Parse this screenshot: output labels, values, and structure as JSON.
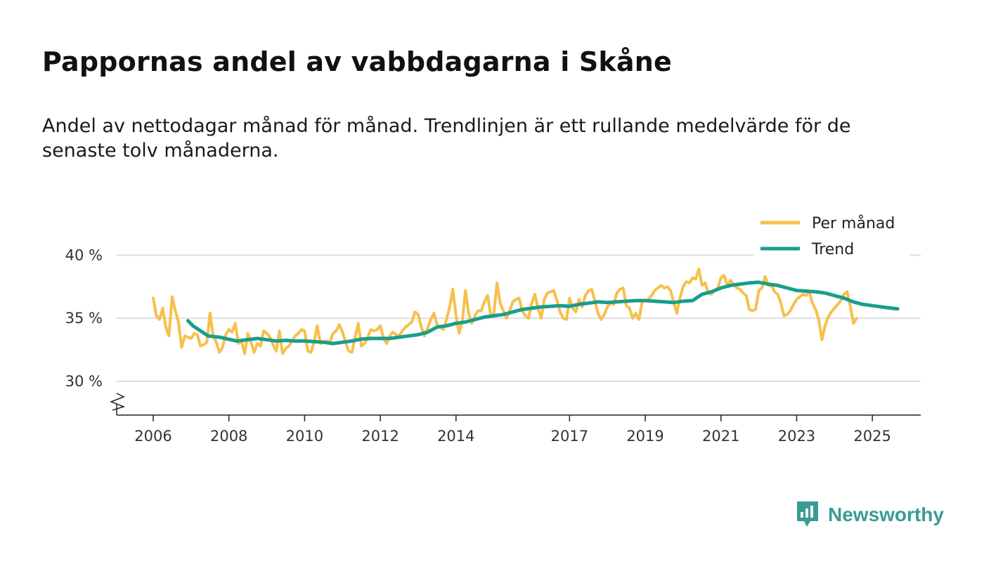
{
  "title": "Pappornas andel av vabbdagarna i Skåne",
  "subtitle": "Andel av nettodagar månad för månad. Trendlinjen är ett rullande medelvärde för de senaste tolv månaderna.",
  "brand": {
    "name": "Newsworthy",
    "icon": "newsworthy-logo-icon",
    "color": "#3a9b93"
  },
  "chart_data": {
    "type": "line",
    "title": "Pappornas andel av vabbdagarna i Skåne",
    "xlabel": "",
    "ylabel": "",
    "ylim": [
      27.5,
      40.5
    ],
    "xlim": [
      2005.8,
      2027.2
    ],
    "y_ticks": [
      30,
      35,
      40
    ],
    "y_tick_labels": [
      "30 %",
      "35 %",
      "40 %"
    ],
    "x_ticks": [
      2006,
      2008,
      2010,
      2012,
      2014,
      2017,
      2019,
      2021,
      2023,
      2025
    ],
    "x_tick_labels": [
      "2006",
      "2008",
      "2010",
      "2012",
      "2014",
      "2017",
      "2019",
      "2021",
      "2023",
      "2025"
    ],
    "grid": "horizontal",
    "legend": "top-right",
    "series": [
      {
        "name": "Per månad",
        "color": "#f7c04c",
        "start_year": 2006,
        "monthly": true,
        "values": [
          36.6,
          35.2,
          34.9,
          35.8,
          34.3,
          33.6,
          36.7,
          35.6,
          34.7,
          32.7,
          33.6,
          33.5,
          33.4,
          33.8,
          33.7,
          32.8,
          32.9,
          33.1,
          35.4,
          33.6,
          33.1,
          32.3,
          32.7,
          33.7,
          34.1,
          33.9,
          34.6,
          33.0,
          33.2,
          32.2,
          33.8,
          33.1,
          32.3,
          33.0,
          32.8,
          34.0,
          33.8,
          33.5,
          32.9,
          32.4,
          34.0,
          32.2,
          32.6,
          32.8,
          33.2,
          33.6,
          33.8,
          34.1,
          34.0,
          32.4,
          32.3,
          33.1,
          34.4,
          33.0,
          33.1,
          33.2,
          33.1,
          33.8,
          34.0,
          34.5,
          33.9,
          33.1,
          32.4,
          32.3,
          33.5,
          34.6,
          32.8,
          33.0,
          33.5,
          34.1,
          34.0,
          34.1,
          34.4,
          33.4,
          33.0,
          33.6,
          33.9,
          33.7,
          33.6,
          34.0,
          34.3,
          34.5,
          34.7,
          35.5,
          35.3,
          34.3,
          33.6,
          34.2,
          34.9,
          35.4,
          34.5,
          34.3,
          34.1,
          34.9,
          35.9,
          37.3,
          35.2,
          33.8,
          34.8,
          37.2,
          35.4,
          34.6,
          35.2,
          35.6,
          35.6,
          36.3,
          36.8,
          35.2,
          35.4,
          37.8,
          36.2,
          35.6,
          35.0,
          35.6,
          36.3,
          36.5,
          36.6,
          35.6,
          35.2,
          35.0,
          36.2,
          36.9,
          35.8,
          35.0,
          36.5,
          37.0,
          37.1,
          37.2,
          36.4,
          35.5,
          35.0,
          34.9,
          36.6,
          35.8,
          35.5,
          36.5,
          35.9,
          36.8,
          37.2,
          37.3,
          36.4,
          35.4,
          34.9,
          35.3,
          35.9,
          36.2,
          36.1,
          37.0,
          37.3,
          37.4,
          36.0,
          35.8,
          35.0,
          35.4,
          34.9,
          36.3,
          36.4,
          36.5,
          36.8,
          37.2,
          37.4,
          37.6,
          37.4,
          37.5,
          37.2,
          36.3,
          35.4,
          36.6,
          37.5,
          37.9,
          37.8,
          38.2,
          38.1,
          38.9,
          37.6,
          37.8,
          37.0,
          36.9,
          37.2,
          37.4,
          38.2,
          38.4,
          37.6,
          38.0,
          37.7,
          37.4,
          37.3,
          37.0,
          36.8,
          35.7,
          35.6,
          35.7,
          37.2,
          37.4,
          38.3,
          37.6,
          37.6,
          37.1,
          36.9,
          36.2,
          35.2,
          35.3,
          35.6,
          36.1,
          36.5,
          36.7,
          36.9,
          36.8,
          37.1,
          36.2,
          35.7,
          34.9,
          33.3,
          34.4,
          35.1,
          35.5,
          35.8,
          36.1,
          36.4,
          36.9,
          37.1,
          36.0,
          34.6,
          35.0
        ]
      },
      {
        "name": "Trend",
        "color": "#1a9d8c",
        "points": [
          [
            2006.92,
            34.8
          ],
          [
            2007.05,
            34.4
          ],
          [
            2007.25,
            34.0
          ],
          [
            2007.45,
            33.6
          ],
          [
            2007.75,
            33.5
          ],
          [
            2008.05,
            33.3
          ],
          [
            2008.2,
            33.2
          ],
          [
            2008.5,
            33.3
          ],
          [
            2008.75,
            33.4
          ],
          [
            2009.0,
            33.3
          ],
          [
            2009.25,
            33.2
          ],
          [
            2009.5,
            33.25
          ],
          [
            2009.75,
            33.2
          ],
          [
            2010.0,
            33.2
          ],
          [
            2010.25,
            33.15
          ],
          [
            2010.5,
            33.1
          ],
          [
            2010.75,
            33.0
          ],
          [
            2011.0,
            33.1
          ],
          [
            2011.25,
            33.2
          ],
          [
            2011.5,
            33.35
          ],
          [
            2011.75,
            33.4
          ],
          [
            2012.0,
            33.4
          ],
          [
            2012.25,
            33.4
          ],
          [
            2012.5,
            33.5
          ],
          [
            2012.75,
            33.6
          ],
          [
            2013.0,
            33.7
          ],
          [
            2013.25,
            33.9
          ],
          [
            2013.5,
            34.3
          ],
          [
            2013.75,
            34.4
          ],
          [
            2014.0,
            34.6
          ],
          [
            2014.25,
            34.7
          ],
          [
            2014.5,
            34.9
          ],
          [
            2014.75,
            35.1
          ],
          [
            2015.0,
            35.2
          ],
          [
            2015.25,
            35.3
          ],
          [
            2015.5,
            35.5
          ],
          [
            2015.75,
            35.7
          ],
          [
            2016.0,
            35.8
          ],
          [
            2016.25,
            35.9
          ],
          [
            2016.5,
            35.95
          ],
          [
            2016.75,
            36.0
          ],
          [
            2017.0,
            35.95
          ],
          [
            2017.25,
            36.1
          ],
          [
            2017.5,
            36.2
          ],
          [
            2017.75,
            36.3
          ],
          [
            2018.0,
            36.25
          ],
          [
            2018.25,
            36.3
          ],
          [
            2018.5,
            36.35
          ],
          [
            2018.75,
            36.4
          ],
          [
            2019.0,
            36.4
          ],
          [
            2019.25,
            36.35
          ],
          [
            2019.5,
            36.3
          ],
          [
            2019.75,
            36.25
          ],
          [
            2020.0,
            36.35
          ],
          [
            2020.25,
            36.4
          ],
          [
            2020.5,
            36.9
          ],
          [
            2020.75,
            37.1
          ],
          [
            2021.0,
            37.4
          ],
          [
            2021.25,
            37.6
          ],
          [
            2021.5,
            37.7
          ],
          [
            2021.75,
            37.8
          ],
          [
            2022.0,
            37.85
          ],
          [
            2022.25,
            37.7
          ],
          [
            2022.5,
            37.6
          ],
          [
            2022.75,
            37.4
          ],
          [
            2023.0,
            37.2
          ],
          [
            2023.25,
            37.15
          ],
          [
            2023.5,
            37.1
          ],
          [
            2023.75,
            37.0
          ],
          [
            2024.0,
            36.8
          ],
          [
            2024.25,
            36.6
          ],
          [
            2024.5,
            36.3
          ],
          [
            2024.75,
            36.1
          ],
          [
            2025.0,
            36.0
          ],
          [
            2025.25,
            35.9
          ],
          [
            2025.5,
            35.8
          ],
          [
            2025.67,
            35.75
          ]
        ]
      }
    ]
  }
}
